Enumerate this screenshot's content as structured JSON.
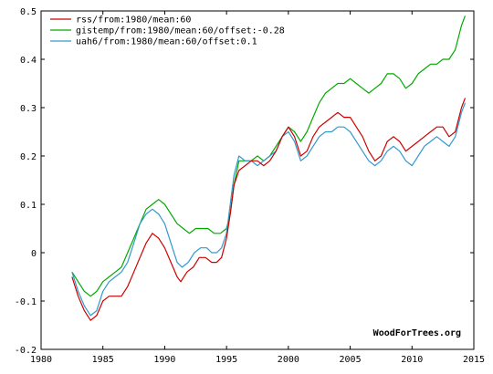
{
  "chart_data": {
    "type": "line",
    "title": "",
    "xlabel": "",
    "ylabel": "",
    "xlim": [
      1980,
      2015
    ],
    "ylim": [
      -0.2,
      0.5
    ],
    "x_ticks": [
      1980,
      1985,
      1990,
      1995,
      2000,
      2005,
      2010,
      2015
    ],
    "x_tick_labels": [
      "1980",
      "1985",
      "1990",
      "1995",
      "2000",
      "2005",
      "2010",
      "2015"
    ],
    "y_ticks": [
      -0.2,
      -0.1,
      0,
      0.1,
      0.2,
      0.3,
      0.4,
      0.5
    ],
    "y_tick_labels": [
      "-0.2",
      "-0.1",
      "0",
      "0.1",
      "0.2",
      "0.3",
      "0.4",
      "0.5"
    ],
    "grid": false,
    "legend_position": "top-left",
    "credit": "WoodForTrees.org",
    "series": [
      {
        "name": "rss/from:1980/mean:60",
        "color": "#cc0000",
        "points": [
          [
            1982.5,
            -0.05
          ],
          [
            1983.0,
            -0.09
          ],
          [
            1983.5,
            -0.12
          ],
          [
            1984.0,
            -0.14
          ],
          [
            1984.5,
            -0.13
          ],
          [
            1985.0,
            -0.1
          ],
          [
            1985.5,
            -0.09
          ],
          [
            1986.0,
            -0.09
          ],
          [
            1986.5,
            -0.09
          ],
          [
            1987.0,
            -0.07
          ],
          [
            1987.5,
            -0.04
          ],
          [
            1988.0,
            -0.01
          ],
          [
            1988.5,
            0.02
          ],
          [
            1989.0,
            0.04
          ],
          [
            1989.5,
            0.03
          ],
          [
            1990.0,
            0.01
          ],
          [
            1990.5,
            -0.02
          ],
          [
            1991.0,
            -0.05
          ],
          [
            1991.3,
            -0.06
          ],
          [
            1991.8,
            -0.04
          ],
          [
            1992.3,
            -0.03
          ],
          [
            1992.8,
            -0.01
          ],
          [
            1993.3,
            -0.01
          ],
          [
            1993.8,
            -0.02
          ],
          [
            1994.2,
            -0.02
          ],
          [
            1994.6,
            -0.01
          ],
          [
            1995.0,
            0.03
          ],
          [
            1995.3,
            0.08
          ],
          [
            1995.6,
            0.14
          ],
          [
            1996.0,
            0.17
          ],
          [
            1996.5,
            0.18
          ],
          [
            1997.0,
            0.19
          ],
          [
            1997.5,
            0.19
          ],
          [
            1998.0,
            0.18
          ],
          [
            1998.5,
            0.19
          ],
          [
            1999.0,
            0.21
          ],
          [
            1999.5,
            0.24
          ],
          [
            2000.0,
            0.26
          ],
          [
            2000.5,
            0.24
          ],
          [
            2001.0,
            0.2
          ],
          [
            2001.5,
            0.21
          ],
          [
            2002.0,
            0.24
          ],
          [
            2002.5,
            0.26
          ],
          [
            2003.0,
            0.27
          ],
          [
            2003.5,
            0.28
          ],
          [
            2004.0,
            0.29
          ],
          [
            2004.5,
            0.28
          ],
          [
            2005.0,
            0.28
          ],
          [
            2005.5,
            0.26
          ],
          [
            2006.0,
            0.24
          ],
          [
            2006.5,
            0.21
          ],
          [
            2007.0,
            0.19
          ],
          [
            2007.5,
            0.2
          ],
          [
            2008.0,
            0.23
          ],
          [
            2008.5,
            0.24
          ],
          [
            2009.0,
            0.23
          ],
          [
            2009.5,
            0.21
          ],
          [
            2010.0,
            0.22
          ],
          [
            2010.5,
            0.23
          ],
          [
            2011.0,
            0.24
          ],
          [
            2011.5,
            0.25
          ],
          [
            2012.0,
            0.26
          ],
          [
            2012.5,
            0.26
          ],
          [
            2013.0,
            0.24
          ],
          [
            2013.5,
            0.25
          ],
          [
            2014.0,
            0.3
          ],
          [
            2014.3,
            0.32
          ]
        ]
      },
      {
        "name": "gistemp/from:1980/mean:60/offset:-0.28",
        "color": "#00aa00",
        "points": [
          [
            1982.5,
            -0.04
          ],
          [
            1983.0,
            -0.06
          ],
          [
            1983.5,
            -0.08
          ],
          [
            1984.0,
            -0.09
          ],
          [
            1984.5,
            -0.08
          ],
          [
            1985.0,
            -0.06
          ],
          [
            1985.5,
            -0.05
          ],
          [
            1986.0,
            -0.04
          ],
          [
            1986.5,
            -0.03
          ],
          [
            1987.0,
            0.0
          ],
          [
            1987.5,
            0.03
          ],
          [
            1988.0,
            0.06
          ],
          [
            1988.5,
            0.09
          ],
          [
            1989.0,
            0.1
          ],
          [
            1989.5,
            0.11
          ],
          [
            1990.0,
            0.1
          ],
          [
            1990.5,
            0.08
          ],
          [
            1991.0,
            0.06
          ],
          [
            1991.5,
            0.05
          ],
          [
            1992.0,
            0.04
          ],
          [
            1992.5,
            0.05
          ],
          [
            1993.0,
            0.05
          ],
          [
            1993.5,
            0.05
          ],
          [
            1994.0,
            0.04
          ],
          [
            1994.5,
            0.04
          ],
          [
            1995.0,
            0.05
          ],
          [
            1995.3,
            0.08
          ],
          [
            1995.6,
            0.14
          ],
          [
            1996.0,
            0.19
          ],
          [
            1996.5,
            0.19
          ],
          [
            1997.0,
            0.19
          ],
          [
            1997.5,
            0.2
          ],
          [
            1998.0,
            0.19
          ],
          [
            1998.5,
            0.2
          ],
          [
            1999.0,
            0.22
          ],
          [
            1999.5,
            0.24
          ],
          [
            2000.0,
            0.26
          ],
          [
            2000.5,
            0.25
          ],
          [
            2001.0,
            0.23
          ],
          [
            2001.5,
            0.25
          ],
          [
            2002.0,
            0.28
          ],
          [
            2002.5,
            0.31
          ],
          [
            2003.0,
            0.33
          ],
          [
            2003.5,
            0.34
          ],
          [
            2004.0,
            0.35
          ],
          [
            2004.5,
            0.35
          ],
          [
            2005.0,
            0.36
          ],
          [
            2005.5,
            0.35
          ],
          [
            2006.0,
            0.34
          ],
          [
            2006.5,
            0.33
          ],
          [
            2007.0,
            0.34
          ],
          [
            2007.5,
            0.35
          ],
          [
            2008.0,
            0.37
          ],
          [
            2008.5,
            0.37
          ],
          [
            2009.0,
            0.36
          ],
          [
            2009.5,
            0.34
          ],
          [
            2010.0,
            0.35
          ],
          [
            2010.5,
            0.37
          ],
          [
            2011.0,
            0.38
          ],
          [
            2011.5,
            0.39
          ],
          [
            2012.0,
            0.39
          ],
          [
            2012.5,
            0.4
          ],
          [
            2013.0,
            0.4
          ],
          [
            2013.5,
            0.42
          ],
          [
            2014.0,
            0.47
          ],
          [
            2014.3,
            0.49
          ]
        ]
      },
      {
        "name": "uah6/from:1980/mean:60/offset:0.1",
        "color": "#3399cc",
        "points": [
          [
            1982.5,
            -0.04
          ],
          [
            1983.0,
            -0.08
          ],
          [
            1983.5,
            -0.11
          ],
          [
            1984.0,
            -0.13
          ],
          [
            1984.5,
            -0.12
          ],
          [
            1985.0,
            -0.08
          ],
          [
            1985.5,
            -0.06
          ],
          [
            1986.0,
            -0.05
          ],
          [
            1986.5,
            -0.04
          ],
          [
            1987.0,
            -0.02
          ],
          [
            1987.5,
            0.02
          ],
          [
            1988.0,
            0.06
          ],
          [
            1988.5,
            0.08
          ],
          [
            1989.0,
            0.09
          ],
          [
            1989.5,
            0.08
          ],
          [
            1990.0,
            0.06
          ],
          [
            1990.5,
            0.02
          ],
          [
            1991.0,
            -0.02
          ],
          [
            1991.4,
            -0.03
          ],
          [
            1991.9,
            -0.02
          ],
          [
            1992.4,
            0.0
          ],
          [
            1992.9,
            0.01
          ],
          [
            1993.4,
            0.01
          ],
          [
            1993.8,
            0.0
          ],
          [
            1994.2,
            0.0
          ],
          [
            1994.6,
            0.01
          ],
          [
            1995.0,
            0.04
          ],
          [
            1995.3,
            0.1
          ],
          [
            1995.6,
            0.16
          ],
          [
            1996.0,
            0.2
          ],
          [
            1996.5,
            0.19
          ],
          [
            1997.0,
            0.19
          ],
          [
            1997.5,
            0.18
          ],
          [
            1998.0,
            0.19
          ],
          [
            1998.5,
            0.2
          ],
          [
            1999.0,
            0.21
          ],
          [
            1999.5,
            0.24
          ],
          [
            2000.0,
            0.25
          ],
          [
            2000.5,
            0.23
          ],
          [
            2001.0,
            0.19
          ],
          [
            2001.5,
            0.2
          ],
          [
            2002.0,
            0.22
          ],
          [
            2002.5,
            0.24
          ],
          [
            2003.0,
            0.25
          ],
          [
            2003.5,
            0.25
          ],
          [
            2004.0,
            0.26
          ],
          [
            2004.5,
            0.26
          ],
          [
            2005.0,
            0.25
          ],
          [
            2005.5,
            0.23
          ],
          [
            2006.0,
            0.21
          ],
          [
            2006.5,
            0.19
          ],
          [
            2007.0,
            0.18
          ],
          [
            2007.5,
            0.19
          ],
          [
            2008.0,
            0.21
          ],
          [
            2008.5,
            0.22
          ],
          [
            2009.0,
            0.21
          ],
          [
            2009.5,
            0.19
          ],
          [
            2010.0,
            0.18
          ],
          [
            2010.5,
            0.2
          ],
          [
            2011.0,
            0.22
          ],
          [
            2011.5,
            0.23
          ],
          [
            2012.0,
            0.24
          ],
          [
            2012.5,
            0.23
          ],
          [
            2013.0,
            0.22
          ],
          [
            2013.5,
            0.24
          ],
          [
            2014.0,
            0.29
          ],
          [
            2014.3,
            0.31
          ]
        ]
      }
    ]
  }
}
